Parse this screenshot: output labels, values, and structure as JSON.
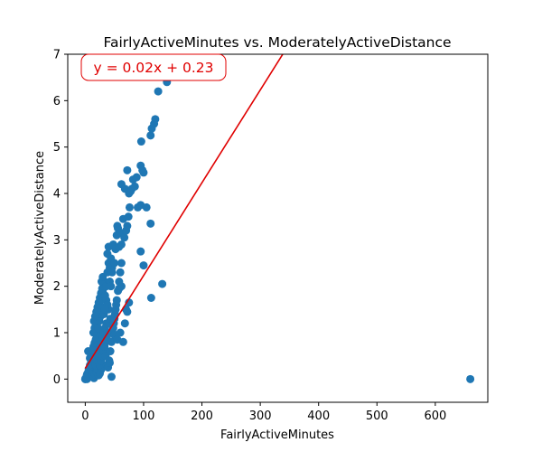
{
  "chart_data": {
    "type": "scatter",
    "title": "FairlyActiveMinutes vs. ModeratelyActiveDistance",
    "xlabel": "FairlyActiveMinutes",
    "ylabel": "ModeratelyActiveDistance",
    "xlim": [
      -30,
      690
    ],
    "ylim": [
      -0.5,
      7
    ],
    "xticks": [
      0,
      100,
      200,
      300,
      400,
      500,
      600
    ],
    "yticks": [
      0,
      1,
      2,
      3,
      4,
      5,
      6,
      7
    ],
    "grid": false,
    "colors": {
      "points": "#1f77b4",
      "fit_line": "#e00000",
      "annotation": "#e00000"
    },
    "fit": {
      "slope": 0.02,
      "intercept": 0.23,
      "label": "y = 0.02x + 0.23"
    },
    "points": [
      [
        0,
        0
      ],
      [
        0,
        0
      ],
      [
        1,
        0.01
      ],
      [
        2,
        0.02
      ],
      [
        3,
        0
      ],
      [
        4,
        0.05
      ],
      [
        5,
        0.03
      ],
      [
        6,
        0.1
      ],
      [
        7,
        0.05
      ],
      [
        8,
        0.12
      ],
      [
        9,
        0.08
      ],
      [
        10,
        0.15
      ],
      [
        11,
        0.2
      ],
      [
        12,
        0.1
      ],
      [
        13,
        0.25
      ],
      [
        14,
        0.3
      ],
      [
        15,
        0.18
      ],
      [
        16,
        0.35
      ],
      [
        17,
        0.28
      ],
      [
        18,
        0.4
      ],
      [
        3,
        0.1
      ],
      [
        5,
        0.15
      ],
      [
        7,
        0.2
      ],
      [
        9,
        0.25
      ],
      [
        11,
        0.32
      ],
      [
        13,
        0.4
      ],
      [
        15,
        0.45
      ],
      [
        17,
        0.5
      ],
      [
        19,
        0.55
      ],
      [
        21,
        0.6
      ],
      [
        2,
        0.05
      ],
      [
        4,
        0.12
      ],
      [
        6,
        0.22
      ],
      [
        8,
        0.3
      ],
      [
        10,
        0.4
      ],
      [
        12,
        0.5
      ],
      [
        14,
        0.55
      ],
      [
        16,
        0.62
      ],
      [
        18,
        0.7
      ],
      [
        20,
        0.75
      ],
      [
        5,
        0.6
      ],
      [
        8,
        0.45
      ],
      [
        10,
        0.55
      ],
      [
        12,
        0.62
      ],
      [
        14,
        0.7
      ],
      [
        16,
        0.78
      ],
      [
        18,
        0.85
      ],
      [
        20,
        0.9
      ],
      [
        22,
        1.0
      ],
      [
        24,
        1.05
      ],
      [
        11,
        0.1
      ],
      [
        13,
        0.05
      ],
      [
        15,
        0.02
      ],
      [
        17,
        0.1
      ],
      [
        19,
        0.15
      ],
      [
        21,
        0.2
      ],
      [
        23,
        0.08
      ],
      [
        25,
        0.12
      ],
      [
        27,
        0.2
      ],
      [
        29,
        0.25
      ],
      [
        14,
        1.0
      ],
      [
        16,
        1.1
      ],
      [
        18,
        1.2
      ],
      [
        20,
        1.3
      ],
      [
        22,
        1.1
      ],
      [
        24,
        1.25
      ],
      [
        26,
        1.35
      ],
      [
        28,
        1.4
      ],
      [
        30,
        1.5
      ],
      [
        32,
        1.55
      ],
      [
        18,
        0.3
      ],
      [
        20,
        0.4
      ],
      [
        22,
        0.5
      ],
      [
        24,
        0.6
      ],
      [
        26,
        0.7
      ],
      [
        28,
        0.8
      ],
      [
        30,
        0.9
      ],
      [
        32,
        1.0
      ],
      [
        34,
        1.1
      ],
      [
        36,
        1.2
      ],
      [
        15,
        1.25
      ],
      [
        17,
        1.35
      ],
      [
        19,
        1.45
      ],
      [
        21,
        1.55
      ],
      [
        23,
        1.65
      ],
      [
        25,
        1.75
      ],
      [
        27,
        1.85
      ],
      [
        29,
        1.95
      ],
      [
        31,
        2.05
      ],
      [
        33,
        2.1
      ],
      [
        22,
        1.5
      ],
      [
        24,
        1.6
      ],
      [
        26,
        1.7
      ],
      [
        28,
        1.8
      ],
      [
        30,
        1.9
      ],
      [
        32,
        2.0
      ],
      [
        34,
        1.8
      ],
      [
        36,
        1.7
      ],
      [
        38,
        1.6
      ],
      [
        40,
        1.5
      ],
      [
        25,
        0.3
      ],
      [
        27,
        0.4
      ],
      [
        29,
        0.5
      ],
      [
        31,
        0.6
      ],
      [
        33,
        0.7
      ],
      [
        35,
        0.8
      ],
      [
        37,
        0.9
      ],
      [
        39,
        1.0
      ],
      [
        41,
        1.2
      ],
      [
        43,
        1.3
      ],
      [
        28,
        2.1
      ],
      [
        30,
        2.2
      ],
      [
        32,
        1.4
      ],
      [
        34,
        1.5
      ],
      [
        36,
        2.0
      ],
      [
        38,
        2.3
      ],
      [
        40,
        2.5
      ],
      [
        42,
        2.1
      ],
      [
        44,
        2.0
      ],
      [
        46,
        2.4
      ],
      [
        35,
        0.5
      ],
      [
        37,
        0.3
      ],
      [
        39,
        0.25
      ],
      [
        41,
        0.4
      ],
      [
        43,
        0.6
      ],
      [
        45,
        0.8
      ],
      [
        47,
        1.0
      ],
      [
        49,
        1.2
      ],
      [
        51,
        1.4
      ],
      [
        53,
        1.6
      ],
      [
        38,
        2.7
      ],
      [
        40,
        2.85
      ],
      [
        42,
        2.4
      ],
      [
        44,
        2.6
      ],
      [
        46,
        2.3
      ],
      [
        48,
        2.9
      ],
      [
        50,
        2.5
      ],
      [
        52,
        2.8
      ],
      [
        54,
        3.1
      ],
      [
        56,
        3.25
      ],
      [
        45,
        0.05
      ],
      [
        42,
        0.35
      ],
      [
        48,
        1.1
      ],
      [
        50,
        1.3
      ],
      [
        52,
        1.5
      ],
      [
        54,
        1.7
      ],
      [
        56,
        1.9
      ],
      [
        58,
        2.1
      ],
      [
        60,
        2.3
      ],
      [
        62,
        2.5
      ],
      [
        50,
        0.95
      ],
      [
        55,
        0.85
      ],
      [
        60,
        1.0
      ],
      [
        65,
        0.8
      ],
      [
        68,
        1.2
      ],
      [
        70,
        1.5
      ],
      [
        72,
        1.45
      ],
      [
        75,
        1.65
      ],
      [
        58,
        1.95
      ],
      [
        62,
        2.0
      ],
      [
        55,
        3.3
      ],
      [
        58,
        2.85
      ],
      [
        60,
        3.15
      ],
      [
        62,
        2.9
      ],
      [
        65,
        3.45
      ],
      [
        67,
        3.05
      ],
      [
        70,
        3.2
      ],
      [
        72,
        3.3
      ],
      [
        74,
        3.5
      ],
      [
        76,
        3.7
      ],
      [
        62,
        4.2
      ],
      [
        68,
        4.1
      ],
      [
        75,
        4.0
      ],
      [
        78,
        4.05
      ],
      [
        80,
        4.1
      ],
      [
        82,
        4.3
      ],
      [
        85,
        4.15
      ],
      [
        88,
        4.35
      ],
      [
        90,
        3.7
      ],
      [
        95,
        3.75
      ],
      [
        72,
        4.5
      ],
      [
        95,
        4.6
      ],
      [
        98,
        4.5
      ],
      [
        100,
        4.45
      ],
      [
        105,
        3.7
      ],
      [
        95,
        2.75
      ],
      [
        100,
        2.45
      ],
      [
        112,
        3.35
      ],
      [
        113,
        1.75
      ],
      [
        132,
        2.05
      ],
      [
        96,
        5.12
      ],
      [
        112,
        5.25
      ],
      [
        114,
        5.4
      ],
      [
        118,
        5.5
      ],
      [
        120,
        5.6
      ],
      [
        125,
        6.2
      ],
      [
        140,
        6.4
      ],
      [
        660,
        0
      ]
    ]
  }
}
